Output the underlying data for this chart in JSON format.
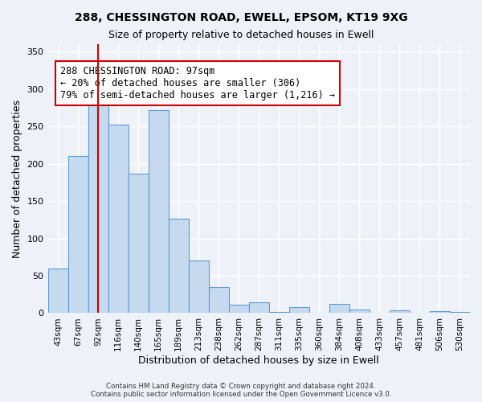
{
  "title1": "288, CHESSINGTON ROAD, EWELL, EPSOM, KT19 9XG",
  "title2": "Size of property relative to detached houses in Ewell",
  "xlabel": "Distribution of detached houses by size in Ewell",
  "ylabel": "Number of detached properties",
  "bar_labels": [
    "43sqm",
    "67sqm",
    "92sqm",
    "116sqm",
    "140sqm",
    "165sqm",
    "189sqm",
    "213sqm",
    "238sqm",
    "262sqm",
    "287sqm",
    "311sqm",
    "335sqm",
    "360sqm",
    "384sqm",
    "408sqm",
    "433sqm",
    "457sqm",
    "481sqm",
    "506sqm",
    "530sqm"
  ],
  "bar_heights": [
    60,
    210,
    283,
    252,
    187,
    272,
    126,
    70,
    35,
    11,
    14,
    2,
    8,
    0,
    12,
    5,
    0,
    4,
    0,
    3,
    2
  ],
  "bar_color": "#c5d9ef",
  "bar_edge_color": "#5b9bd5",
  "bar_width": 1.0,
  "vline_x": 2,
  "vline_color": "#cc0000",
  "annotation_text": "288 CHESSINGTON ROAD: 97sqm\n← 20% of detached houses are smaller (306)\n79% of semi-detached houses are larger (1,216) →",
  "annotation_box_color": "#ffffff",
  "annotation_box_edge_color": "#cc0000",
  "ylim": [
    0,
    360
  ],
  "yticks": [
    0,
    50,
    100,
    150,
    200,
    250,
    300,
    350
  ],
  "footer1": "Contains HM Land Registry data © Crown copyright and database right 2024.",
  "footer2": "Contains public sector information licensed under the Open Government Licence v3.0.",
  "bg_color": "#eef2f8",
  "plot_bg_color": "#eef2f8"
}
